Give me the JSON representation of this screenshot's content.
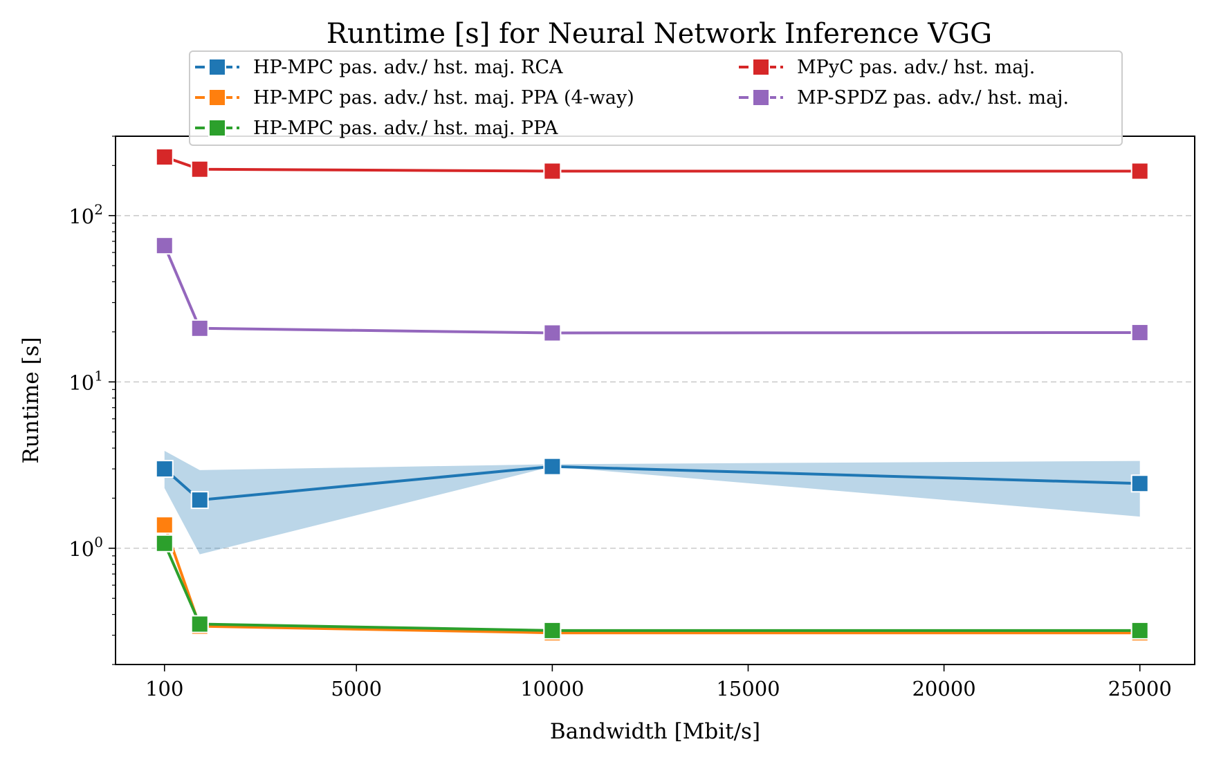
{
  "chart_data": {
    "type": "line",
    "title": "Runtime [s] for Neural Network Inference VGG",
    "xlabel": "Bandwidth [Mbit/s]",
    "ylabel": "Runtime [s]",
    "xlim": [
      -1150,
      26400
    ],
    "ylim": [
      0.2,
      300
    ],
    "yscale": "log",
    "grid": "y-major-dashed",
    "legend_placement": "top-center",
    "x_ticks": [
      {
        "value": 100,
        "label": "100"
      },
      {
        "value": 5000,
        "label": "5000"
      },
      {
        "value": 10000,
        "label": "10000"
      },
      {
        "value": 15000,
        "label": "15000"
      },
      {
        "value": 20000,
        "label": "20000"
      },
      {
        "value": 25000,
        "label": "25000"
      }
    ],
    "y_ticks": [
      {
        "value": 1,
        "base": "10",
        "exp": "0"
      },
      {
        "value": 10,
        "base": "10",
        "exp": "1"
      },
      {
        "value": 100,
        "base": "10",
        "exp": "2"
      }
    ],
    "x": [
      100,
      1000,
      10000,
      25000
    ],
    "series": [
      {
        "name": "HP-MPC pas. adv./ hst. maj. RCA",
        "color": "#1f77b4",
        "values": [
          3.0,
          1.95,
          3.1,
          2.45
        ],
        "band": {
          "lower": [
            2.3,
            0.92,
            3.1,
            1.55
          ],
          "upper": [
            3.85,
            2.95,
            3.2,
            3.35
          ]
        }
      },
      {
        "name": "HP-MPC pas. adv./ hst. maj. PPA (4-way)",
        "color": "#ff7f0e",
        "values": [
          1.38,
          0.34,
          0.31,
          0.31
        ]
      },
      {
        "name": "HP-MPC pas. adv./ hst. maj. PPA",
        "color": "#2ca02c",
        "values": [
          1.07,
          0.35,
          0.32,
          0.32
        ]
      },
      {
        "name": "MPyC pas. adv./ hst. maj.",
        "color": "#d62728",
        "values": [
          225,
          190,
          185,
          185
        ]
      },
      {
        "name": "MP-SPDZ pas. adv./ hst. maj.",
        "color": "#9467bd",
        "values": [
          66,
          21,
          19.7,
          19.8
        ]
      }
    ]
  }
}
